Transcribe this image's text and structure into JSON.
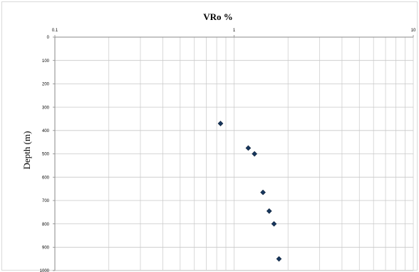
{
  "chart_data": {
    "type": "scatter",
    "title": "VRo %",
    "xlabel": "",
    "ylabel": "Depth (m)",
    "x_scale": "log",
    "xlim": [
      0.1,
      10
    ],
    "ylim": [
      1000,
      0
    ],
    "y_inverted": true,
    "grid": true,
    "x_ticks": [
      "0.1",
      "1",
      "10"
    ],
    "y_ticks": [
      "0",
      "100",
      "200",
      "300",
      "400",
      "500",
      "600",
      "700",
      "800",
      "900",
      "1000"
    ],
    "marker": "diamond",
    "marker_color": "#17375e",
    "points": [
      {
        "x": 0.84,
        "y": 370
      },
      {
        "x": 1.2,
        "y": 475
      },
      {
        "x": 1.3,
        "y": 500
      },
      {
        "x": 1.45,
        "y": 665
      },
      {
        "x": 1.57,
        "y": 745
      },
      {
        "x": 1.67,
        "y": 800
      },
      {
        "x": 1.78,
        "y": 950
      }
    ]
  }
}
